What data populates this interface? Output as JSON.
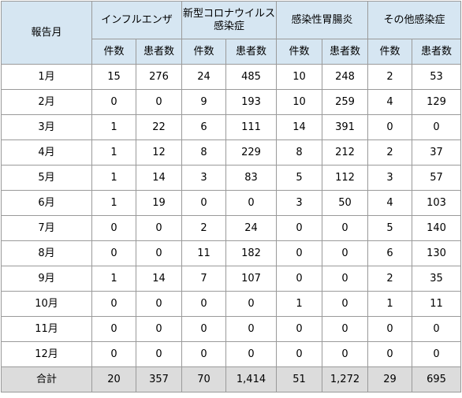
{
  "header": {
    "month_label": "報告月",
    "groups": [
      "インフルエンザ",
      "新型コロナウイルス感染症",
      "感染性胃腸炎",
      "その他感染症"
    ],
    "sub_labels": [
      "件数",
      "患者数"
    ]
  },
  "rows": [
    {
      "month": "1月",
      "values": [
        "15",
        "276",
        "24",
        "485",
        "10",
        "248",
        "2",
        "53"
      ]
    },
    {
      "month": "2月",
      "values": [
        "0",
        "0",
        "9",
        "193",
        "10",
        "259",
        "4",
        "129"
      ]
    },
    {
      "month": "3月",
      "values": [
        "1",
        "22",
        "6",
        "111",
        "14",
        "391",
        "0",
        "0"
      ]
    },
    {
      "month": "4月",
      "values": [
        "1",
        "12",
        "8",
        "229",
        "8",
        "212",
        "2",
        "37"
      ]
    },
    {
      "month": "5月",
      "values": [
        "1",
        "14",
        "3",
        "83",
        "5",
        "112",
        "3",
        "57"
      ]
    },
    {
      "month": "6月",
      "values": [
        "1",
        "19",
        "0",
        "0",
        "3",
        "50",
        "4",
        "103"
      ]
    },
    {
      "month": "7月",
      "values": [
        "0",
        "0",
        "2",
        "24",
        "0",
        "0",
        "5",
        "140"
      ]
    },
    {
      "month": "8月",
      "values": [
        "0",
        "0",
        "11",
        "182",
        "0",
        "0",
        "6",
        "130"
      ]
    },
    {
      "month": "9月",
      "values": [
        "1",
        "14",
        "7",
        "107",
        "0",
        "0",
        "2",
        "35"
      ]
    },
    {
      "month": "10月",
      "values": [
        "0",
        "0",
        "0",
        "0",
        "1",
        "0",
        "1",
        "11"
      ]
    },
    {
      "month": "11月",
      "values": [
        "0",
        "0",
        "0",
        "0",
        "0",
        "0",
        "0",
        "0"
      ]
    },
    {
      "month": "12月",
      "values": [
        "0",
        "0",
        "0",
        "0",
        "0",
        "0",
        "0",
        "0"
      ]
    }
  ],
  "total": {
    "label": "合計",
    "values": [
      "20",
      "357",
      "70",
      "1,414",
      "51",
      "1,272",
      "29",
      "695"
    ]
  },
  "colors": {
    "header_background": "#d6e6f2",
    "total_background": "#dcdcdc",
    "border": "#9a9a9a"
  }
}
